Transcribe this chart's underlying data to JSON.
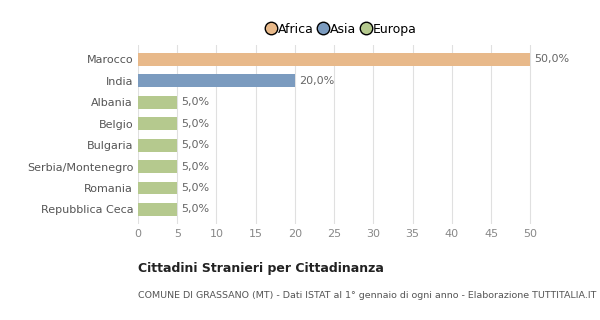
{
  "categories": [
    "Repubblica Ceca",
    "Romania",
    "Serbia/Montenegro",
    "Bulgaria",
    "Belgio",
    "Albania",
    "India",
    "Marocco"
  ],
  "values": [
    5.0,
    5.0,
    5.0,
    5.0,
    5.0,
    5.0,
    20.0,
    50.0
  ],
  "colors": [
    "#b5c98e",
    "#b5c98e",
    "#b5c98e",
    "#b5c98e",
    "#b5c98e",
    "#b5c98e",
    "#7b9bbf",
    "#e8b98a"
  ],
  "labels": [
    "5,0%",
    "5,0%",
    "5,0%",
    "5,0%",
    "5,0%",
    "5,0%",
    "20,0%",
    "50,0%"
  ],
  "xlim": [
    0,
    52
  ],
  "xticks": [
    0,
    5,
    10,
    15,
    20,
    25,
    30,
    35,
    40,
    45,
    50
  ],
  "title_main": "Cittadini Stranieri per Cittadinanza",
  "title_sub": "COMUNE DI GRASSANO (MT) - Dati ISTAT al 1° gennaio di ogni anno - Elaborazione TUTTITALIA.IT",
  "legend_labels": [
    "Africa",
    "Asia",
    "Europa"
  ],
  "legend_colors": [
    "#e8b98a",
    "#7b9bbf",
    "#b5c98e"
  ],
  "background_color": "#ffffff",
  "bar_height": 0.6,
  "label_fontsize": 8,
  "ytick_fontsize": 8,
  "xtick_fontsize": 8
}
